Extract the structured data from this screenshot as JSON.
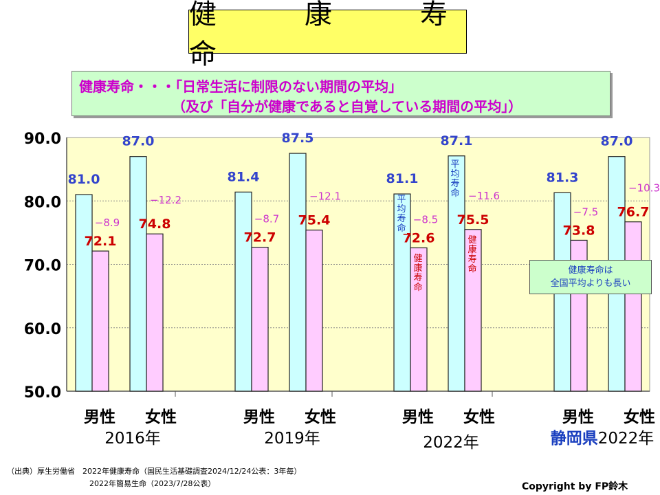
{
  "title": "健　康　寿　命",
  "definition": {
    "line1": "健康寿命・・・「日常生活に制限のない期間の平均」",
    "line2": "（及び「自分が健康であると自覚している期間の平均」）"
  },
  "note": {
    "line1": "健康寿命は",
    "line2": "全国平均よりも長い"
  },
  "bar_labels": {
    "avg": "平均寿命",
    "health": "健康寿命"
  },
  "source": {
    "line1": "（出典）厚生労働省　2022年健康寿命（国民生活基礎調査2024/12/24公表：3年毎）",
    "line2": "2022年簡易生命（2023/7/28公表）"
  },
  "copyright": "Copyright by FP鈴木",
  "colors": {
    "avg_fill": "#ccffff",
    "health_fill": "#ffccff",
    "avg_text": "#3344cc",
    "health_text": "#cc0000",
    "diff_text": "#cc33cc",
    "plot_bg": "#ffffcc",
    "prefecture_text": "#1a3fbf"
  },
  "chart_data": {
    "type": "bar",
    "ylim": [
      50,
      90
    ],
    "yticks": [
      "90.0",
      "80.0",
      "70.0",
      "60.0",
      "50.0"
    ],
    "grid": true,
    "groups": [
      {
        "gender_male": "男性",
        "gender_female": "女性",
        "year": "2016年",
        "prefix": "",
        "male_avg": 81.0,
        "male_health": 72.1,
        "male_diff": "−8.9",
        "female_avg": 87.0,
        "female_health": 74.8,
        "female_diff": "−12.2"
      },
      {
        "gender_male": "男性",
        "gender_female": "女性",
        "year": "2019年",
        "prefix": "",
        "male_avg": 81.4,
        "male_health": 72.7,
        "male_diff": "−8.7",
        "female_avg": 87.5,
        "female_health": 75.4,
        "female_diff": "−12.1"
      },
      {
        "gender_male": "男性",
        "gender_female": "女性",
        "year": "2022年",
        "prefix": "",
        "male_avg": 81.1,
        "male_health": 72.6,
        "male_diff": "−8.5",
        "female_avg": 87.1,
        "female_health": 75.5,
        "female_diff": "−11.6"
      },
      {
        "gender_male": "男性",
        "gender_female": "女性",
        "year": "2022年",
        "prefix": "静岡県",
        "male_avg": 81.3,
        "male_health": 73.8,
        "male_diff": "−7.5",
        "female_avg": 87.0,
        "female_health": 76.7,
        "female_diff": "−10.3"
      }
    ]
  }
}
